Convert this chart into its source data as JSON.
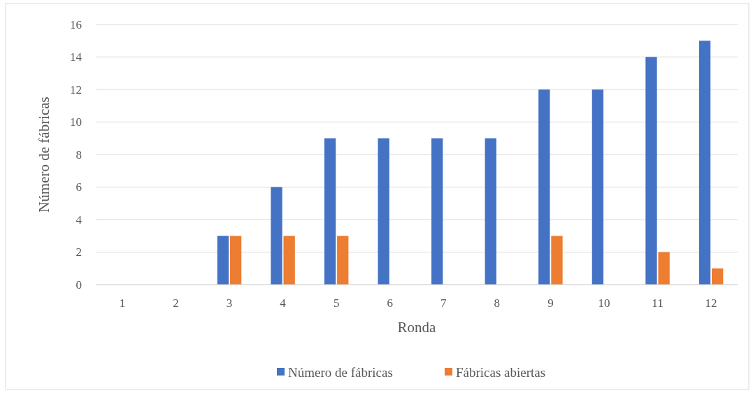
{
  "chart_data": {
    "type": "bar",
    "xlabel": "Ronda",
    "ylabel": "Número de fábricas",
    "categories": [
      "1",
      "2",
      "3",
      "4",
      "5",
      "6",
      "7",
      "8",
      "9",
      "10",
      "11",
      "12"
    ],
    "series": [
      {
        "name": "Número de fábricas",
        "color": "#4472c4",
        "values": [
          0,
          0,
          3,
          6,
          9,
          9,
          9,
          9,
          12,
          12,
          14,
          15
        ]
      },
      {
        "name": "Fábricas abiertas",
        "color": "#ed7d31",
        "values": [
          0,
          0,
          3,
          3,
          3,
          0,
          0,
          0,
          3,
          0,
          2,
          1
        ]
      }
    ],
    "ylim": [
      0,
      16
    ],
    "yticks": [
      0,
      2,
      4,
      6,
      8,
      10,
      12,
      14,
      16
    ],
    "grid": "y",
    "legend": "bottom"
  }
}
